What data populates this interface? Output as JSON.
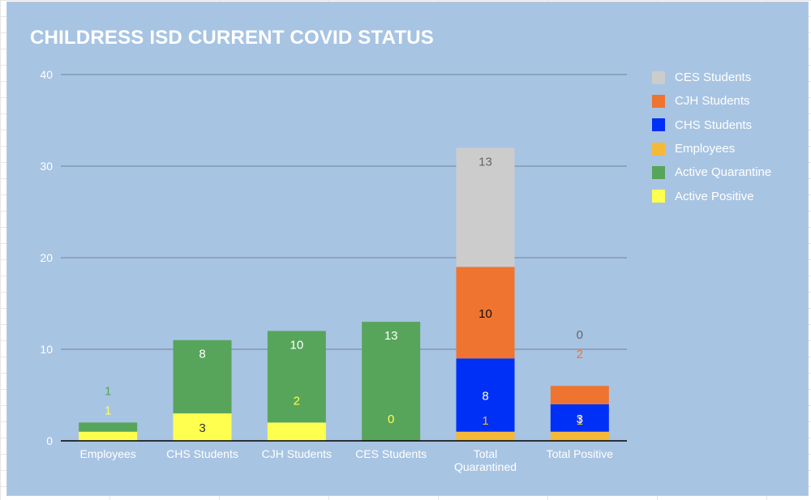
{
  "chart_data": {
    "type": "bar",
    "stacked": true,
    "title": "CHILDRESS ISD CURRENT COVID STATUS",
    "xlabel": "",
    "ylabel": "",
    "ylim": [
      0,
      40
    ],
    "yticks": [
      0,
      10,
      20,
      30,
      40
    ],
    "grid": true,
    "legend_position": "right",
    "categories": [
      "Employees",
      "CHS Students",
      "CJH Students",
      "CES Students",
      "Total Quarantined",
      "Total Positive"
    ],
    "series": [
      {
        "name": "Active Positive",
        "color": "#ffff50",
        "label_color": "#ffff50",
        "values": [
          1,
          3,
          2,
          0,
          null,
          null
        ]
      },
      {
        "name": "Active Quarantine",
        "color": "#57a55a",
        "label_color": "#57a55a",
        "values": [
          1,
          8,
          10,
          13,
          null,
          null
        ]
      },
      {
        "name": "Employees",
        "color": "#f5b93a",
        "label_color": "#f5b93a",
        "values": [
          null,
          null,
          null,
          null,
          1,
          1
        ]
      },
      {
        "name": "CHS Students",
        "color": "#0030f5",
        "label_color": "#0030f5",
        "values": [
          null,
          null,
          null,
          null,
          8,
          3
        ]
      },
      {
        "name": "CJH Students",
        "color": "#ef7430",
        "label_color": "#ef7430",
        "values": [
          null,
          null,
          null,
          null,
          10,
          2
        ]
      },
      {
        "name": "CES Students",
        "color": "#cccccc",
        "label_color": "#666666",
        "values": [
          null,
          null,
          null,
          null,
          13,
          0
        ]
      }
    ],
    "legend_order": [
      "CES Students",
      "CJH Students",
      "CHS Students",
      "Employees",
      "Active Quarantine",
      "Active Positive"
    ]
  }
}
